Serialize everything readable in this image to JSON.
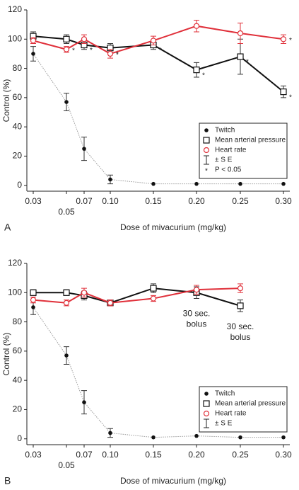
{
  "chart_data": [
    {
      "type": "line",
      "panel": "A",
      "x_label": "Dose of mivacurium (mg/kg)",
      "y_label": "Control (%)",
      "categories": [
        "0.03",
        "0.05",
        "0.07",
        "0.10",
        "0.15",
        "0.20",
        "0.25",
        "0.30"
      ],
      "ylim": [
        -4,
        120
      ],
      "yticks": [
        0,
        20,
        40,
        60,
        80,
        100,
        120
      ],
      "legend_position": "lower right",
      "error_label": "± S E",
      "significance_symbol": "*",
      "significance_label": "P < 0.05",
      "series": [
        {
          "name": "Twitch",
          "color": "#111111",
          "marker": "dot",
          "line_style": "dotted",
          "values": [
            90,
            57,
            25,
            4,
            1,
            1,
            1,
            1
          ],
          "errors": [
            5,
            6,
            8,
            3,
            0,
            0,
            0,
            0
          ],
          "significant": [
            false,
            false,
            false,
            false,
            false,
            false,
            false,
            false
          ]
        },
        {
          "name": "Mean arterial pressure",
          "color": "#111111",
          "marker": "square",
          "line_style": "solid",
          "values": [
            102,
            100,
            96,
            94,
            96,
            79,
            88,
            64
          ],
          "errors": [
            3,
            3,
            3,
            3,
            3,
            5,
            12,
            4
          ],
          "significant": [
            false,
            false,
            true,
            true,
            true,
            true,
            true,
            true
          ]
        },
        {
          "name": "Heart rate",
          "color": "#e0303a",
          "marker": "circle",
          "line_style": "solid",
          "values": [
            99,
            93,
            100,
            90,
            99,
            109,
            104,
            100
          ],
          "errors": [
            2,
            2,
            3,
            3,
            3,
            4,
            7,
            3
          ],
          "significant": [
            false,
            true,
            false,
            true,
            false,
            false,
            false,
            true
          ]
        }
      ]
    },
    {
      "type": "line",
      "panel": "B",
      "x_label": "Dose of mivacurium (mg/kg)",
      "y_label": "Control (%)",
      "categories": [
        "0.03",
        "0.05",
        "0.07",
        "0.10",
        "0.15",
        "0.20",
        "0.25",
        "0.30"
      ],
      "ylim": [
        -4,
        120
      ],
      "yticks": [
        0,
        20,
        40,
        60,
        80,
        100,
        120
      ],
      "legend_position": "lower right",
      "error_label": "± S E",
      "annotations": [
        {
          "text": [
            "30 sec.",
            "bolus"
          ],
          "category": "0.20"
        },
        {
          "text": [
            "30 sec.",
            "bolus"
          ],
          "category": "0.25"
        }
      ],
      "series": [
        {
          "name": "Twitch",
          "color": "#111111",
          "marker": "dot",
          "line_style": "dotted",
          "values": [
            90,
            57,
            25,
            4,
            1,
            2,
            1,
            1
          ],
          "errors": [
            5,
            6,
            8,
            3,
            0,
            0,
            0,
            0
          ]
        },
        {
          "name": "Mean arterial pressure",
          "color": "#111111",
          "marker": "square",
          "line_style": "solid",
          "values": [
            100,
            100,
            98,
            93,
            103,
            100,
            91,
            null
          ],
          "errors": [
            2,
            2,
            3,
            2,
            3,
            4,
            4,
            null
          ]
        },
        {
          "name": "Heart rate",
          "color": "#e0303a",
          "marker": "circle",
          "line_style": "solid",
          "values": [
            95,
            93,
            100,
            93,
            96,
            102,
            103,
            null
          ],
          "errors": [
            2,
            2,
            3,
            2,
            2,
            3,
            3,
            null
          ]
        }
      ]
    }
  ]
}
